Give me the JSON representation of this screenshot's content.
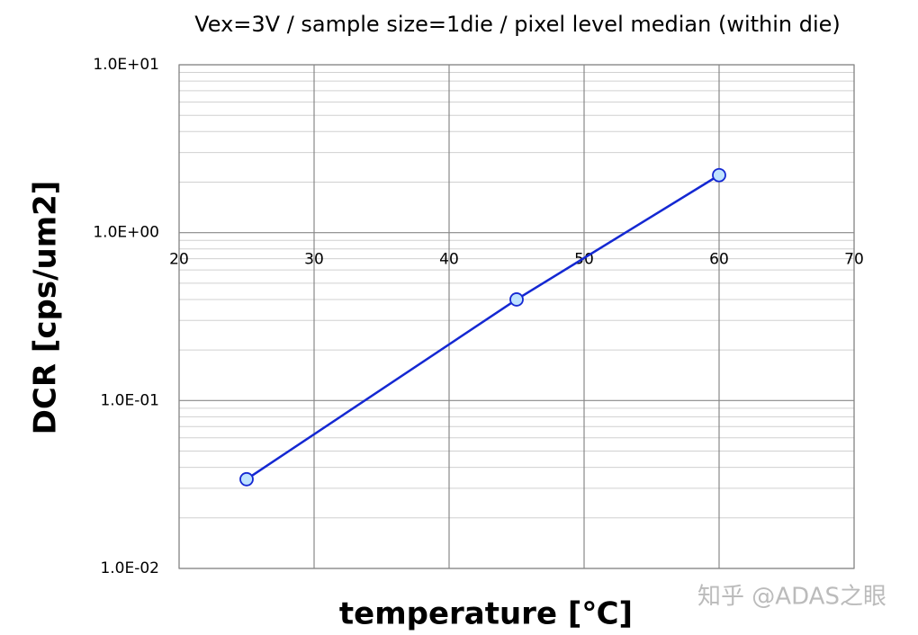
{
  "chart_data": {
    "type": "line",
    "title": "Vex=3V / sample size=1die / pixel level median (within die)",
    "x_label": "temperature [℃]",
    "y_label": "DCR [cps/um2]",
    "watermark": "知乎 @ADAS之眼",
    "x": [
      25,
      45,
      60
    ],
    "series": [
      {
        "name": "DCR",
        "color": "#1428d2",
        "values": [
          0.034,
          0.4,
          2.2
        ]
      }
    ],
    "xlim": [
      20,
      70
    ],
    "xticks": [
      20,
      30,
      40,
      50,
      60,
      70
    ],
    "ylim": [
      0.01,
      10
    ],
    "yticks": [
      {
        "value": 0.01,
        "label": "1.0E-02"
      },
      {
        "value": 0.1,
        "label": "1.0E-01"
      },
      {
        "value": 1,
        "label": "1.0E+00"
      },
      {
        "value": 10,
        "label": "1.0E+01"
      }
    ],
    "log_y": true,
    "grid": true
  }
}
